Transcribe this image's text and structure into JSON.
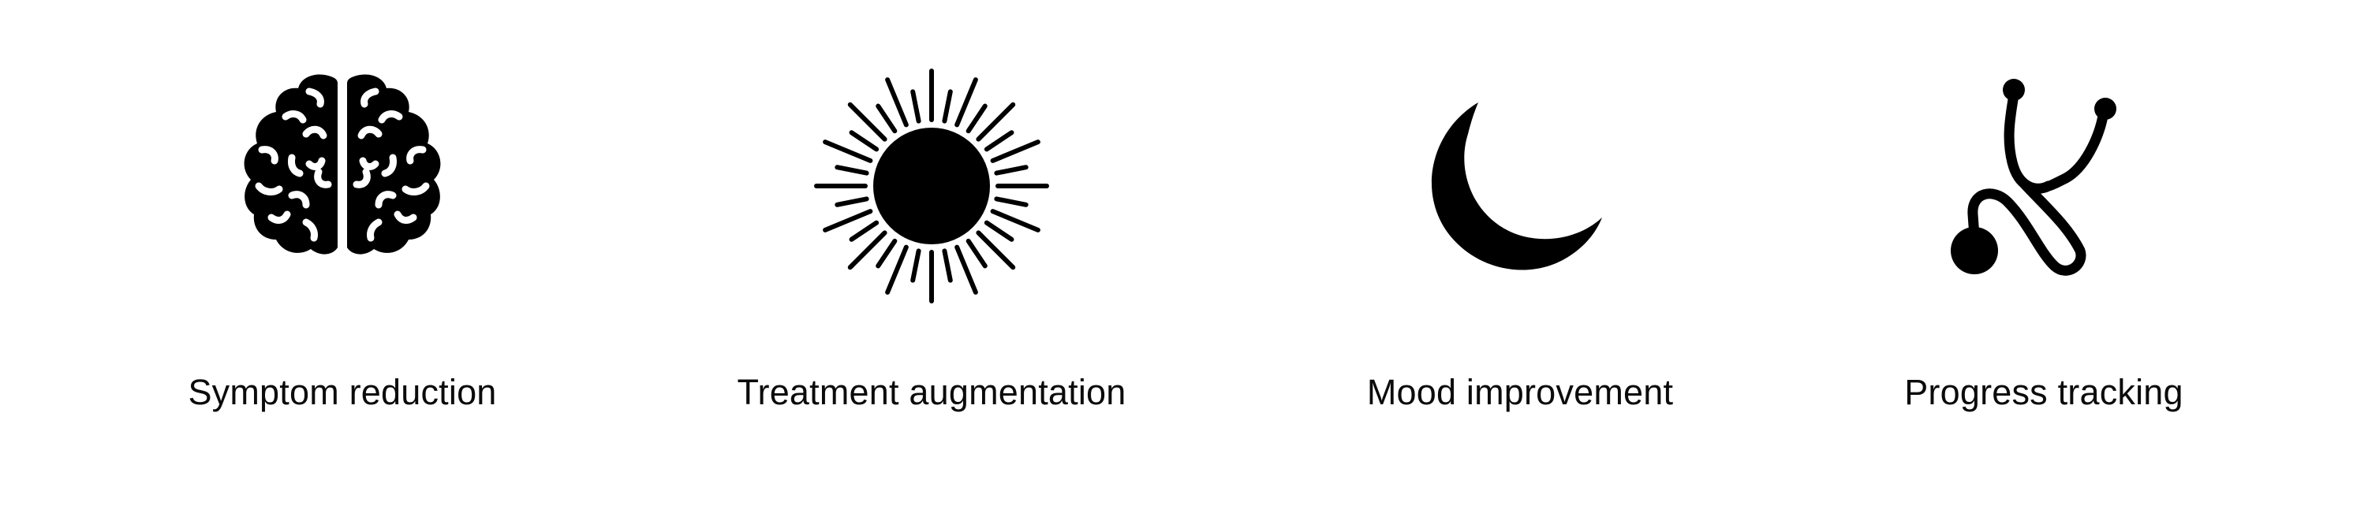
{
  "features": [
    {
      "icon": "brain-icon",
      "label": "Symptom reduction"
    },
    {
      "icon": "sun-icon",
      "label": "Treatment augmentation"
    },
    {
      "icon": "crescent-moon-icon",
      "label": "Mood improvement"
    },
    {
      "icon": "stethoscope-icon",
      "label": "Progress tracking"
    }
  ],
  "colors": {
    "background": "#ffffff",
    "icon": "#000000",
    "text": "#0b0b0b"
  }
}
